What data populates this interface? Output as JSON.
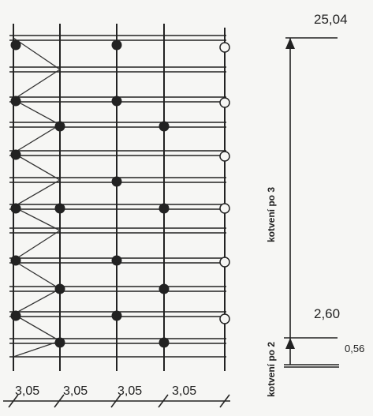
{
  "elevations": {
    "top": "25,04",
    "mid": "2,60",
    "base": "0,56"
  },
  "anchoring": {
    "upper": "kotvení po 3",
    "lower": "kotvení po 2"
  },
  "bay_widths": [
    "3,05",
    "3,05",
    "3,05",
    "3,05"
  ],
  "colors": {
    "line": "#222222",
    "background": "#f6f6f4"
  }
}
